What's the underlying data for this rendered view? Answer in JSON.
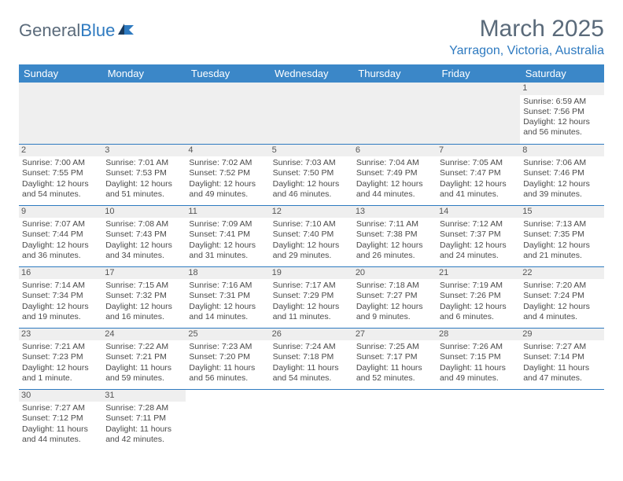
{
  "logo": {
    "text1": "General",
    "text2": "Blue"
  },
  "title": "March 2025",
  "location": "Yarragon, Victoria, Australia",
  "colors": {
    "header_bg": "#3b87c8",
    "accent": "#2e7ac0",
    "text": "#4a4a4a",
    "grey_bg": "#efefef"
  },
  "weekdays": [
    "Sunday",
    "Monday",
    "Tuesday",
    "Wednesday",
    "Thursday",
    "Friday",
    "Saturday"
  ],
  "weeks": [
    [
      null,
      null,
      null,
      null,
      null,
      null,
      {
        "n": "1",
        "sr": "Sunrise: 6:59 AM",
        "ss": "Sunset: 7:56 PM",
        "dl": "Daylight: 12 hours and 56 minutes."
      }
    ],
    [
      {
        "n": "2",
        "sr": "Sunrise: 7:00 AM",
        "ss": "Sunset: 7:55 PM",
        "dl": "Daylight: 12 hours and 54 minutes."
      },
      {
        "n": "3",
        "sr": "Sunrise: 7:01 AM",
        "ss": "Sunset: 7:53 PM",
        "dl": "Daylight: 12 hours and 51 minutes."
      },
      {
        "n": "4",
        "sr": "Sunrise: 7:02 AM",
        "ss": "Sunset: 7:52 PM",
        "dl": "Daylight: 12 hours and 49 minutes."
      },
      {
        "n": "5",
        "sr": "Sunrise: 7:03 AM",
        "ss": "Sunset: 7:50 PM",
        "dl": "Daylight: 12 hours and 46 minutes."
      },
      {
        "n": "6",
        "sr": "Sunrise: 7:04 AM",
        "ss": "Sunset: 7:49 PM",
        "dl": "Daylight: 12 hours and 44 minutes."
      },
      {
        "n": "7",
        "sr": "Sunrise: 7:05 AM",
        "ss": "Sunset: 7:47 PM",
        "dl": "Daylight: 12 hours and 41 minutes."
      },
      {
        "n": "8",
        "sr": "Sunrise: 7:06 AM",
        "ss": "Sunset: 7:46 PM",
        "dl": "Daylight: 12 hours and 39 minutes."
      }
    ],
    [
      {
        "n": "9",
        "sr": "Sunrise: 7:07 AM",
        "ss": "Sunset: 7:44 PM",
        "dl": "Daylight: 12 hours and 36 minutes."
      },
      {
        "n": "10",
        "sr": "Sunrise: 7:08 AM",
        "ss": "Sunset: 7:43 PM",
        "dl": "Daylight: 12 hours and 34 minutes."
      },
      {
        "n": "11",
        "sr": "Sunrise: 7:09 AM",
        "ss": "Sunset: 7:41 PM",
        "dl": "Daylight: 12 hours and 31 minutes."
      },
      {
        "n": "12",
        "sr": "Sunrise: 7:10 AM",
        "ss": "Sunset: 7:40 PM",
        "dl": "Daylight: 12 hours and 29 minutes."
      },
      {
        "n": "13",
        "sr": "Sunrise: 7:11 AM",
        "ss": "Sunset: 7:38 PM",
        "dl": "Daylight: 12 hours and 26 minutes."
      },
      {
        "n": "14",
        "sr": "Sunrise: 7:12 AM",
        "ss": "Sunset: 7:37 PM",
        "dl": "Daylight: 12 hours and 24 minutes."
      },
      {
        "n": "15",
        "sr": "Sunrise: 7:13 AM",
        "ss": "Sunset: 7:35 PM",
        "dl": "Daylight: 12 hours and 21 minutes."
      }
    ],
    [
      {
        "n": "16",
        "sr": "Sunrise: 7:14 AM",
        "ss": "Sunset: 7:34 PM",
        "dl": "Daylight: 12 hours and 19 minutes."
      },
      {
        "n": "17",
        "sr": "Sunrise: 7:15 AM",
        "ss": "Sunset: 7:32 PM",
        "dl": "Daylight: 12 hours and 16 minutes."
      },
      {
        "n": "18",
        "sr": "Sunrise: 7:16 AM",
        "ss": "Sunset: 7:31 PM",
        "dl": "Daylight: 12 hours and 14 minutes."
      },
      {
        "n": "19",
        "sr": "Sunrise: 7:17 AM",
        "ss": "Sunset: 7:29 PM",
        "dl": "Daylight: 12 hours and 11 minutes."
      },
      {
        "n": "20",
        "sr": "Sunrise: 7:18 AM",
        "ss": "Sunset: 7:27 PM",
        "dl": "Daylight: 12 hours and 9 minutes."
      },
      {
        "n": "21",
        "sr": "Sunrise: 7:19 AM",
        "ss": "Sunset: 7:26 PM",
        "dl": "Daylight: 12 hours and 6 minutes."
      },
      {
        "n": "22",
        "sr": "Sunrise: 7:20 AM",
        "ss": "Sunset: 7:24 PM",
        "dl": "Daylight: 12 hours and 4 minutes."
      }
    ],
    [
      {
        "n": "23",
        "sr": "Sunrise: 7:21 AM",
        "ss": "Sunset: 7:23 PM",
        "dl": "Daylight: 12 hours and 1 minute."
      },
      {
        "n": "24",
        "sr": "Sunrise: 7:22 AM",
        "ss": "Sunset: 7:21 PM",
        "dl": "Daylight: 11 hours and 59 minutes."
      },
      {
        "n": "25",
        "sr": "Sunrise: 7:23 AM",
        "ss": "Sunset: 7:20 PM",
        "dl": "Daylight: 11 hours and 56 minutes."
      },
      {
        "n": "26",
        "sr": "Sunrise: 7:24 AM",
        "ss": "Sunset: 7:18 PM",
        "dl": "Daylight: 11 hours and 54 minutes."
      },
      {
        "n": "27",
        "sr": "Sunrise: 7:25 AM",
        "ss": "Sunset: 7:17 PM",
        "dl": "Daylight: 11 hours and 52 minutes."
      },
      {
        "n": "28",
        "sr": "Sunrise: 7:26 AM",
        "ss": "Sunset: 7:15 PM",
        "dl": "Daylight: 11 hours and 49 minutes."
      },
      {
        "n": "29",
        "sr": "Sunrise: 7:27 AM",
        "ss": "Sunset: 7:14 PM",
        "dl": "Daylight: 11 hours and 47 minutes."
      }
    ],
    [
      {
        "n": "30",
        "sr": "Sunrise: 7:27 AM",
        "ss": "Sunset: 7:12 PM",
        "dl": "Daylight: 11 hours and 44 minutes."
      },
      {
        "n": "31",
        "sr": "Sunrise: 7:28 AM",
        "ss": "Sunset: 7:11 PM",
        "dl": "Daylight: 11 hours and 42 minutes."
      },
      null,
      null,
      null,
      null,
      null
    ]
  ]
}
